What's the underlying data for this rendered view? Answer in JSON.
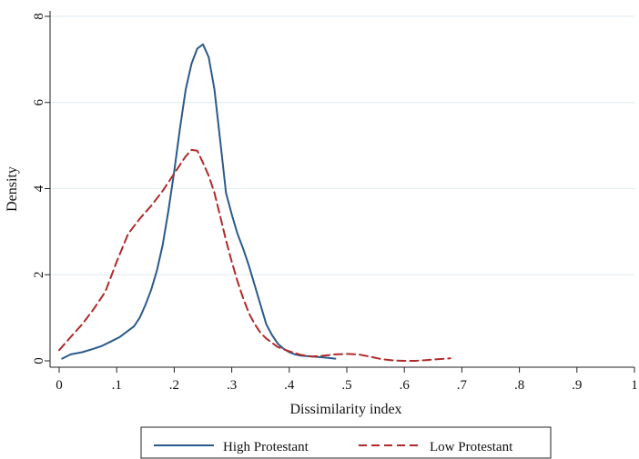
{
  "chart_data": {
    "type": "line",
    "title": "",
    "xlabel": "Dissimilarity index",
    "ylabel": "Density",
    "xlim": [
      0,
      1
    ],
    "ylim": [
      0,
      8
    ],
    "xticks": [
      0,
      0.1,
      0.2,
      0.3,
      0.4,
      0.5,
      0.6,
      0.7,
      0.8,
      0.9,
      1
    ],
    "xtick_labels": [
      "0",
      ".1",
      ".2",
      ".3",
      ".4",
      ".5",
      ".6",
      ".7",
      ".8",
      ".9",
      "1"
    ],
    "yticks": [
      0,
      2,
      4,
      6,
      8
    ],
    "ytick_labels": [
      "0",
      "2",
      "4",
      "6",
      "8"
    ],
    "grid": "horizontal",
    "legend_position": "bottom",
    "series": [
      {
        "name": "High Protestant",
        "color": "#2b5a8a",
        "line_style": "solid",
        "x": [
          0.005,
          0.02,
          0.04,
          0.06,
          0.075,
          0.09,
          0.105,
          0.12,
          0.13,
          0.14,
          0.15,
          0.16,
          0.17,
          0.18,
          0.19,
          0.2,
          0.21,
          0.22,
          0.23,
          0.24,
          0.25,
          0.26,
          0.27,
          0.28,
          0.29,
          0.3,
          0.31,
          0.32,
          0.33,
          0.34,
          0.35,
          0.36,
          0.37,
          0.38,
          0.39,
          0.4,
          0.41,
          0.42,
          0.44,
          0.46,
          0.48
        ],
        "y": [
          0.05,
          0.15,
          0.2,
          0.28,
          0.35,
          0.45,
          0.55,
          0.7,
          0.8,
          1.0,
          1.3,
          1.65,
          2.1,
          2.7,
          3.5,
          4.4,
          5.4,
          6.3,
          6.9,
          7.25,
          7.35,
          7.05,
          6.3,
          5.1,
          3.9,
          3.4,
          2.95,
          2.6,
          2.2,
          1.75,
          1.3,
          0.85,
          0.6,
          0.4,
          0.28,
          0.2,
          0.15,
          0.12,
          0.1,
          0.08,
          0.05
        ]
      },
      {
        "name": "Low Protestant",
        "color": "#b02a2a",
        "line_style": "dashed",
        "x": [
          0.0,
          0.02,
          0.04,
          0.06,
          0.08,
          0.1,
          0.12,
          0.14,
          0.16,
          0.18,
          0.2,
          0.21,
          0.22,
          0.23,
          0.24,
          0.25,
          0.26,
          0.27,
          0.28,
          0.29,
          0.3,
          0.31,
          0.32,
          0.33,
          0.34,
          0.35,
          0.36,
          0.37,
          0.38,
          0.4,
          0.42,
          0.44,
          0.46,
          0.48,
          0.5,
          0.52,
          0.54,
          0.56,
          0.58,
          0.6,
          0.62,
          0.64,
          0.66,
          0.68
        ],
        "y": [
          0.25,
          0.55,
          0.85,
          1.2,
          1.6,
          2.3,
          2.95,
          3.3,
          3.6,
          3.95,
          4.35,
          4.55,
          4.75,
          4.9,
          4.88,
          4.6,
          4.3,
          3.9,
          3.35,
          2.8,
          2.3,
          1.85,
          1.45,
          1.1,
          0.85,
          0.65,
          0.52,
          0.42,
          0.32,
          0.22,
          0.14,
          0.1,
          0.12,
          0.15,
          0.16,
          0.15,
          0.1,
          0.04,
          0.01,
          0.0,
          0.0,
          0.02,
          0.04,
          0.06
        ]
      }
    ]
  }
}
